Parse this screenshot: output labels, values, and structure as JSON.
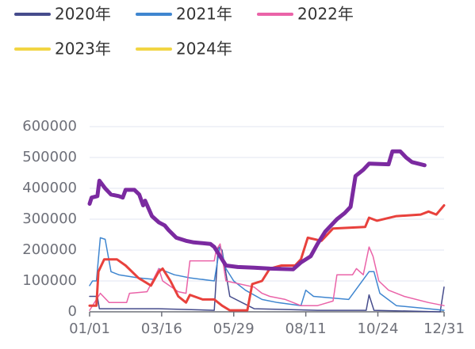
{
  "chart_data": {
    "type": "line",
    "xlim": [
      0,
      364
    ],
    "xticks": [
      {
        "value": 0,
        "label": "01/01"
      },
      {
        "value": 74,
        "label": "03/16"
      },
      {
        "value": 148,
        "label": "05/29"
      },
      {
        "value": 222,
        "label": "08/11"
      },
      {
        "value": 296,
        "label": "10/24"
      },
      {
        "value": 364,
        "label": "12/31"
      }
    ],
    "ylim": [
      0,
      600000
    ],
    "yticks": [
      0,
      100000,
      200000,
      300000,
      400000,
      500000,
      600000
    ],
    "grid": true,
    "legend": "top-left",
    "series": [
      {
        "name": "2020年",
        "color": "#464c8c",
        "legend_color": "#464c8c",
        "width": 1.5,
        "x": [
          0,
          8,
          10,
          71,
          128,
          132,
          136,
          144,
          169,
          234,
          284,
          287,
          292,
          360,
          364
        ],
        "values": [
          50000,
          50000,
          10000,
          10000,
          5000,
          210000,
          200000,
          50000,
          10000,
          5000,
          5000,
          55000,
          5000,
          0,
          80000
        ]
      },
      {
        "name": "2021年",
        "color": "#3f86d0",
        "legend_color": "#3f86d0",
        "width": 1.5,
        "x": [
          0,
          3,
          7,
          11,
          16,
          22,
          30,
          50,
          67,
          71,
          87,
          103,
          128,
          134,
          140,
          148,
          160,
          177,
          193,
          217,
          222,
          230,
          266,
          287,
          292,
          298,
          315,
          348,
          364
        ],
        "values": [
          85000,
          100000,
          100000,
          240000,
          235000,
          130000,
          120000,
          110000,
          105000,
          140000,
          120000,
          110000,
          100000,
          215000,
          140000,
          100000,
          70000,
          40000,
          30000,
          20000,
          70000,
          50000,
          40000,
          130000,
          130000,
          60000,
          20000,
          10000,
          5000
        ]
      },
      {
        "name": "2022年",
        "color": "#ea63a8",
        "legend_color": "#ea63a8",
        "width": 1.5,
        "x": [
          0,
          11,
          20,
          38,
          41,
          59,
          71,
          75,
          91,
          99,
          103,
          128,
          130,
          134,
          140,
          169,
          177,
          185,
          201,
          217,
          234,
          250,
          254,
          270,
          274,
          281,
          287,
          291,
          297,
          307,
          323,
          348,
          364
        ],
        "values": [
          5000,
          60000,
          30000,
          30000,
          60000,
          65000,
          140000,
          100000,
          65000,
          60000,
          165000,
          165000,
          200000,
          220000,
          100000,
          80000,
          60000,
          50000,
          40000,
          20000,
          20000,
          35000,
          120000,
          120000,
          140000,
          120000,
          210000,
          180000,
          100000,
          70000,
          50000,
          30000,
          20000
        ]
      },
      {
        "name": "2023年",
        "color": "#e8413c",
        "legend_color": "#f2d543",
        "width": 3,
        "x": [
          0,
          7,
          9,
          15,
          28,
          37,
          50,
          63,
          71,
          75,
          83,
          91,
          99,
          103,
          116,
          128,
          136,
          144,
          162,
          167,
          177,
          185,
          197,
          211,
          217,
          224,
          238,
          250,
          283,
          287,
          295,
          315,
          340,
          348,
          356,
          364
        ],
        "values": [
          20000,
          20000,
          130000,
          170000,
          170000,
          150000,
          110000,
          85000,
          130000,
          140000,
          100000,
          50000,
          30000,
          55000,
          40000,
          40000,
          20000,
          5000,
          5000,
          90000,
          100000,
          140000,
          150000,
          150000,
          170000,
          240000,
          230000,
          270000,
          275000,
          305000,
          295000,
          310000,
          315000,
          325000,
          315000,
          345000
        ]
      },
      {
        "name": "2024年",
        "color": "#7b2aa0",
        "legend_color": "#f2d543",
        "width": 5,
        "x": [
          0,
          2,
          8,
          10,
          16,
          22,
          30,
          34,
          37,
          46,
          51,
          55,
          57,
          64,
          71,
          77,
          81,
          89,
          99,
          107,
          124,
          128,
          134,
          140,
          152,
          169,
          185,
          209,
          217,
          227,
          234,
          242,
          254,
          262,
          268,
          273,
          281,
          287,
          307,
          311,
          319,
          325,
          331,
          340,
          344
        ],
        "values": [
          350000,
          370000,
          375000,
          425000,
          400000,
          380000,
          375000,
          370000,
          395000,
          395000,
          380000,
          345000,
          360000,
          310000,
          290000,
          280000,
          265000,
          240000,
          230000,
          225000,
          220000,
          210000,
          180000,
          150000,
          145000,
          143000,
          140000,
          138000,
          160000,
          180000,
          220000,
          260000,
          300000,
          320000,
          340000,
          440000,
          460000,
          480000,
          478000,
          520000,
          520000,
          500000,
          485000,
          478000,
          475000
        ]
      }
    ]
  }
}
